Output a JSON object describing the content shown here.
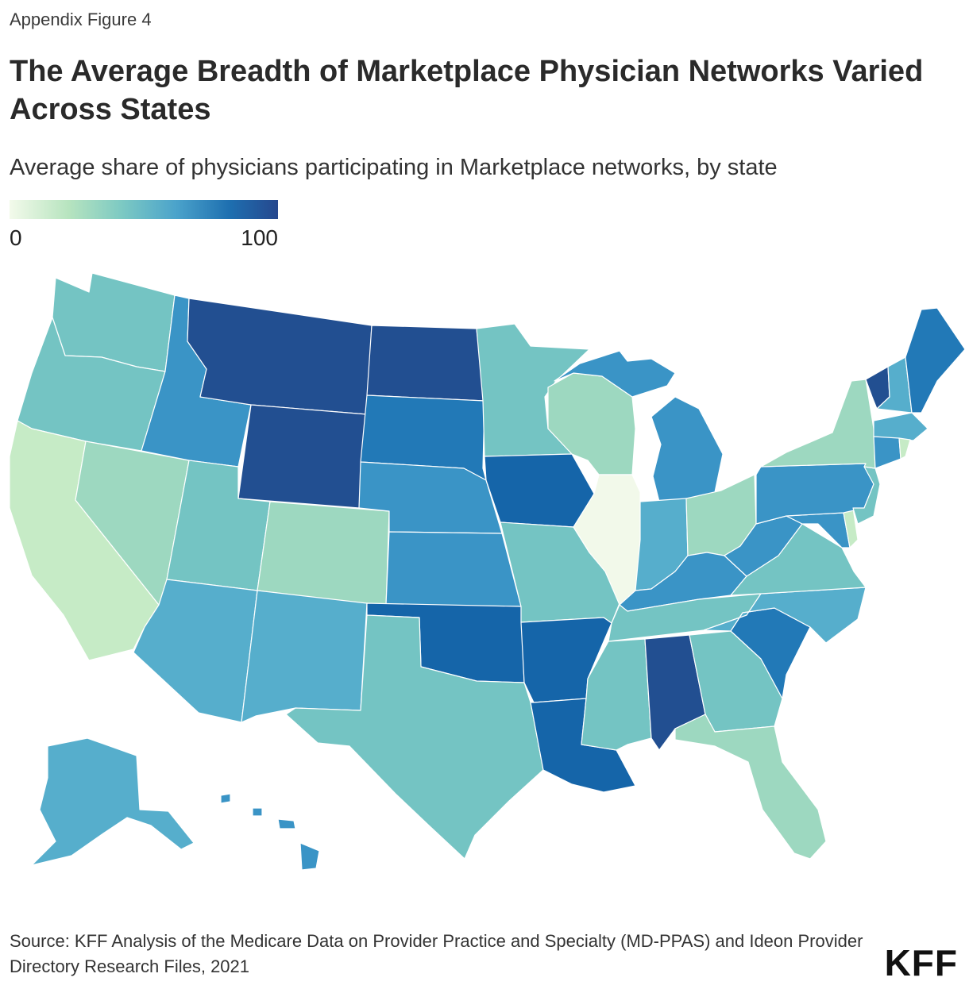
{
  "header": {
    "eyebrow": "Appendix Figure 4",
    "title": "The Average Breadth of Marketplace Physician Networks Varied Across States",
    "subtitle": "Average share of physicians participating in Marketplace networks, by state"
  },
  "legend": {
    "min_label": "0",
    "max_label": "100"
  },
  "footer": {
    "source": "Source: KFF Analysis of the Medicare Data on Provider Practice and Specialty (MD-PPAS) and Ideon Provider Directory Research Files, 2021",
    "logo": "KFF"
  },
  "palette": {
    "very_low": "#f2f9ea",
    "low": "#c6ebc6",
    "low_mid": "#9dd8c0",
    "mid": "#74c4c3",
    "mid_high": "#56aecc",
    "high": "#3a94c6",
    "higher": "#2279b7",
    "very_high": "#1565a9",
    "top": "#224f91"
  },
  "chart_data": {
    "type": "choropleth",
    "title": "The Average Breadth of Marketplace Physician Networks Varied Across States",
    "subtitle": "Average share of physicians participating in Marketplace networks, by state",
    "scale": {
      "min": 0,
      "max": 100
    },
    "states": [
      {
        "state": "WA",
        "color": "#74c4c3"
      },
      {
        "state": "OR",
        "color": "#74c4c3"
      },
      {
        "state": "CA",
        "color": "#c6ebc6"
      },
      {
        "state": "NV",
        "color": "#9dd8c0"
      },
      {
        "state": "ID",
        "color": "#3a94c6"
      },
      {
        "state": "MT",
        "color": "#224f91"
      },
      {
        "state": "WY",
        "color": "#224f91"
      },
      {
        "state": "UT",
        "color": "#74c4c3"
      },
      {
        "state": "AZ",
        "color": "#56aecc"
      },
      {
        "state": "CO",
        "color": "#9dd8c0"
      },
      {
        "state": "NM",
        "color": "#56aecc"
      },
      {
        "state": "ND",
        "color": "#224f91"
      },
      {
        "state": "SD",
        "color": "#2279b7"
      },
      {
        "state": "NE",
        "color": "#3a94c6"
      },
      {
        "state": "KS",
        "color": "#3a94c6"
      },
      {
        "state": "OK",
        "color": "#1565a9"
      },
      {
        "state": "TX",
        "color": "#74c4c3"
      },
      {
        "state": "MN",
        "color": "#74c4c3"
      },
      {
        "state": "IA",
        "color": "#1565a9"
      },
      {
        "state": "MO",
        "color": "#74c4c3"
      },
      {
        "state": "AR",
        "color": "#1565a9"
      },
      {
        "state": "LA",
        "color": "#1565a9"
      },
      {
        "state": "WI",
        "color": "#9dd8c0"
      },
      {
        "state": "IL",
        "color": "#f2f9ea"
      },
      {
        "state": "MI",
        "color": "#3a94c6"
      },
      {
        "state": "IN",
        "color": "#56aecc"
      },
      {
        "state": "OH",
        "color": "#9dd8c0"
      },
      {
        "state": "KY",
        "color": "#3a94c6"
      },
      {
        "state": "TN",
        "color": "#74c4c3"
      },
      {
        "state": "MS",
        "color": "#74c4c3"
      },
      {
        "state": "AL",
        "color": "#224f91"
      },
      {
        "state": "GA",
        "color": "#74c4c3"
      },
      {
        "state": "FL",
        "color": "#9dd8c0"
      },
      {
        "state": "SC",
        "color": "#2279b7"
      },
      {
        "state": "NC",
        "color": "#56aecc"
      },
      {
        "state": "VA",
        "color": "#74c4c3"
      },
      {
        "state": "WV",
        "color": "#3a94c6"
      },
      {
        "state": "MD",
        "color": "#3a94c6"
      },
      {
        "state": "DE",
        "color": "#c6ebc6"
      },
      {
        "state": "PA",
        "color": "#3a94c6"
      },
      {
        "state": "NJ",
        "color": "#74c4c3"
      },
      {
        "state": "NY",
        "color": "#9dd8c0"
      },
      {
        "state": "CT",
        "color": "#3a94c6"
      },
      {
        "state": "RI",
        "color": "#c6ebc6"
      },
      {
        "state": "MA",
        "color": "#56aecc"
      },
      {
        "state": "VT",
        "color": "#224f91"
      },
      {
        "state": "NH",
        "color": "#56aecc"
      },
      {
        "state": "ME",
        "color": "#2279b7"
      },
      {
        "state": "AK",
        "color": "#56aecc"
      },
      {
        "state": "HI",
        "color": "#3a94c6"
      }
    ]
  }
}
